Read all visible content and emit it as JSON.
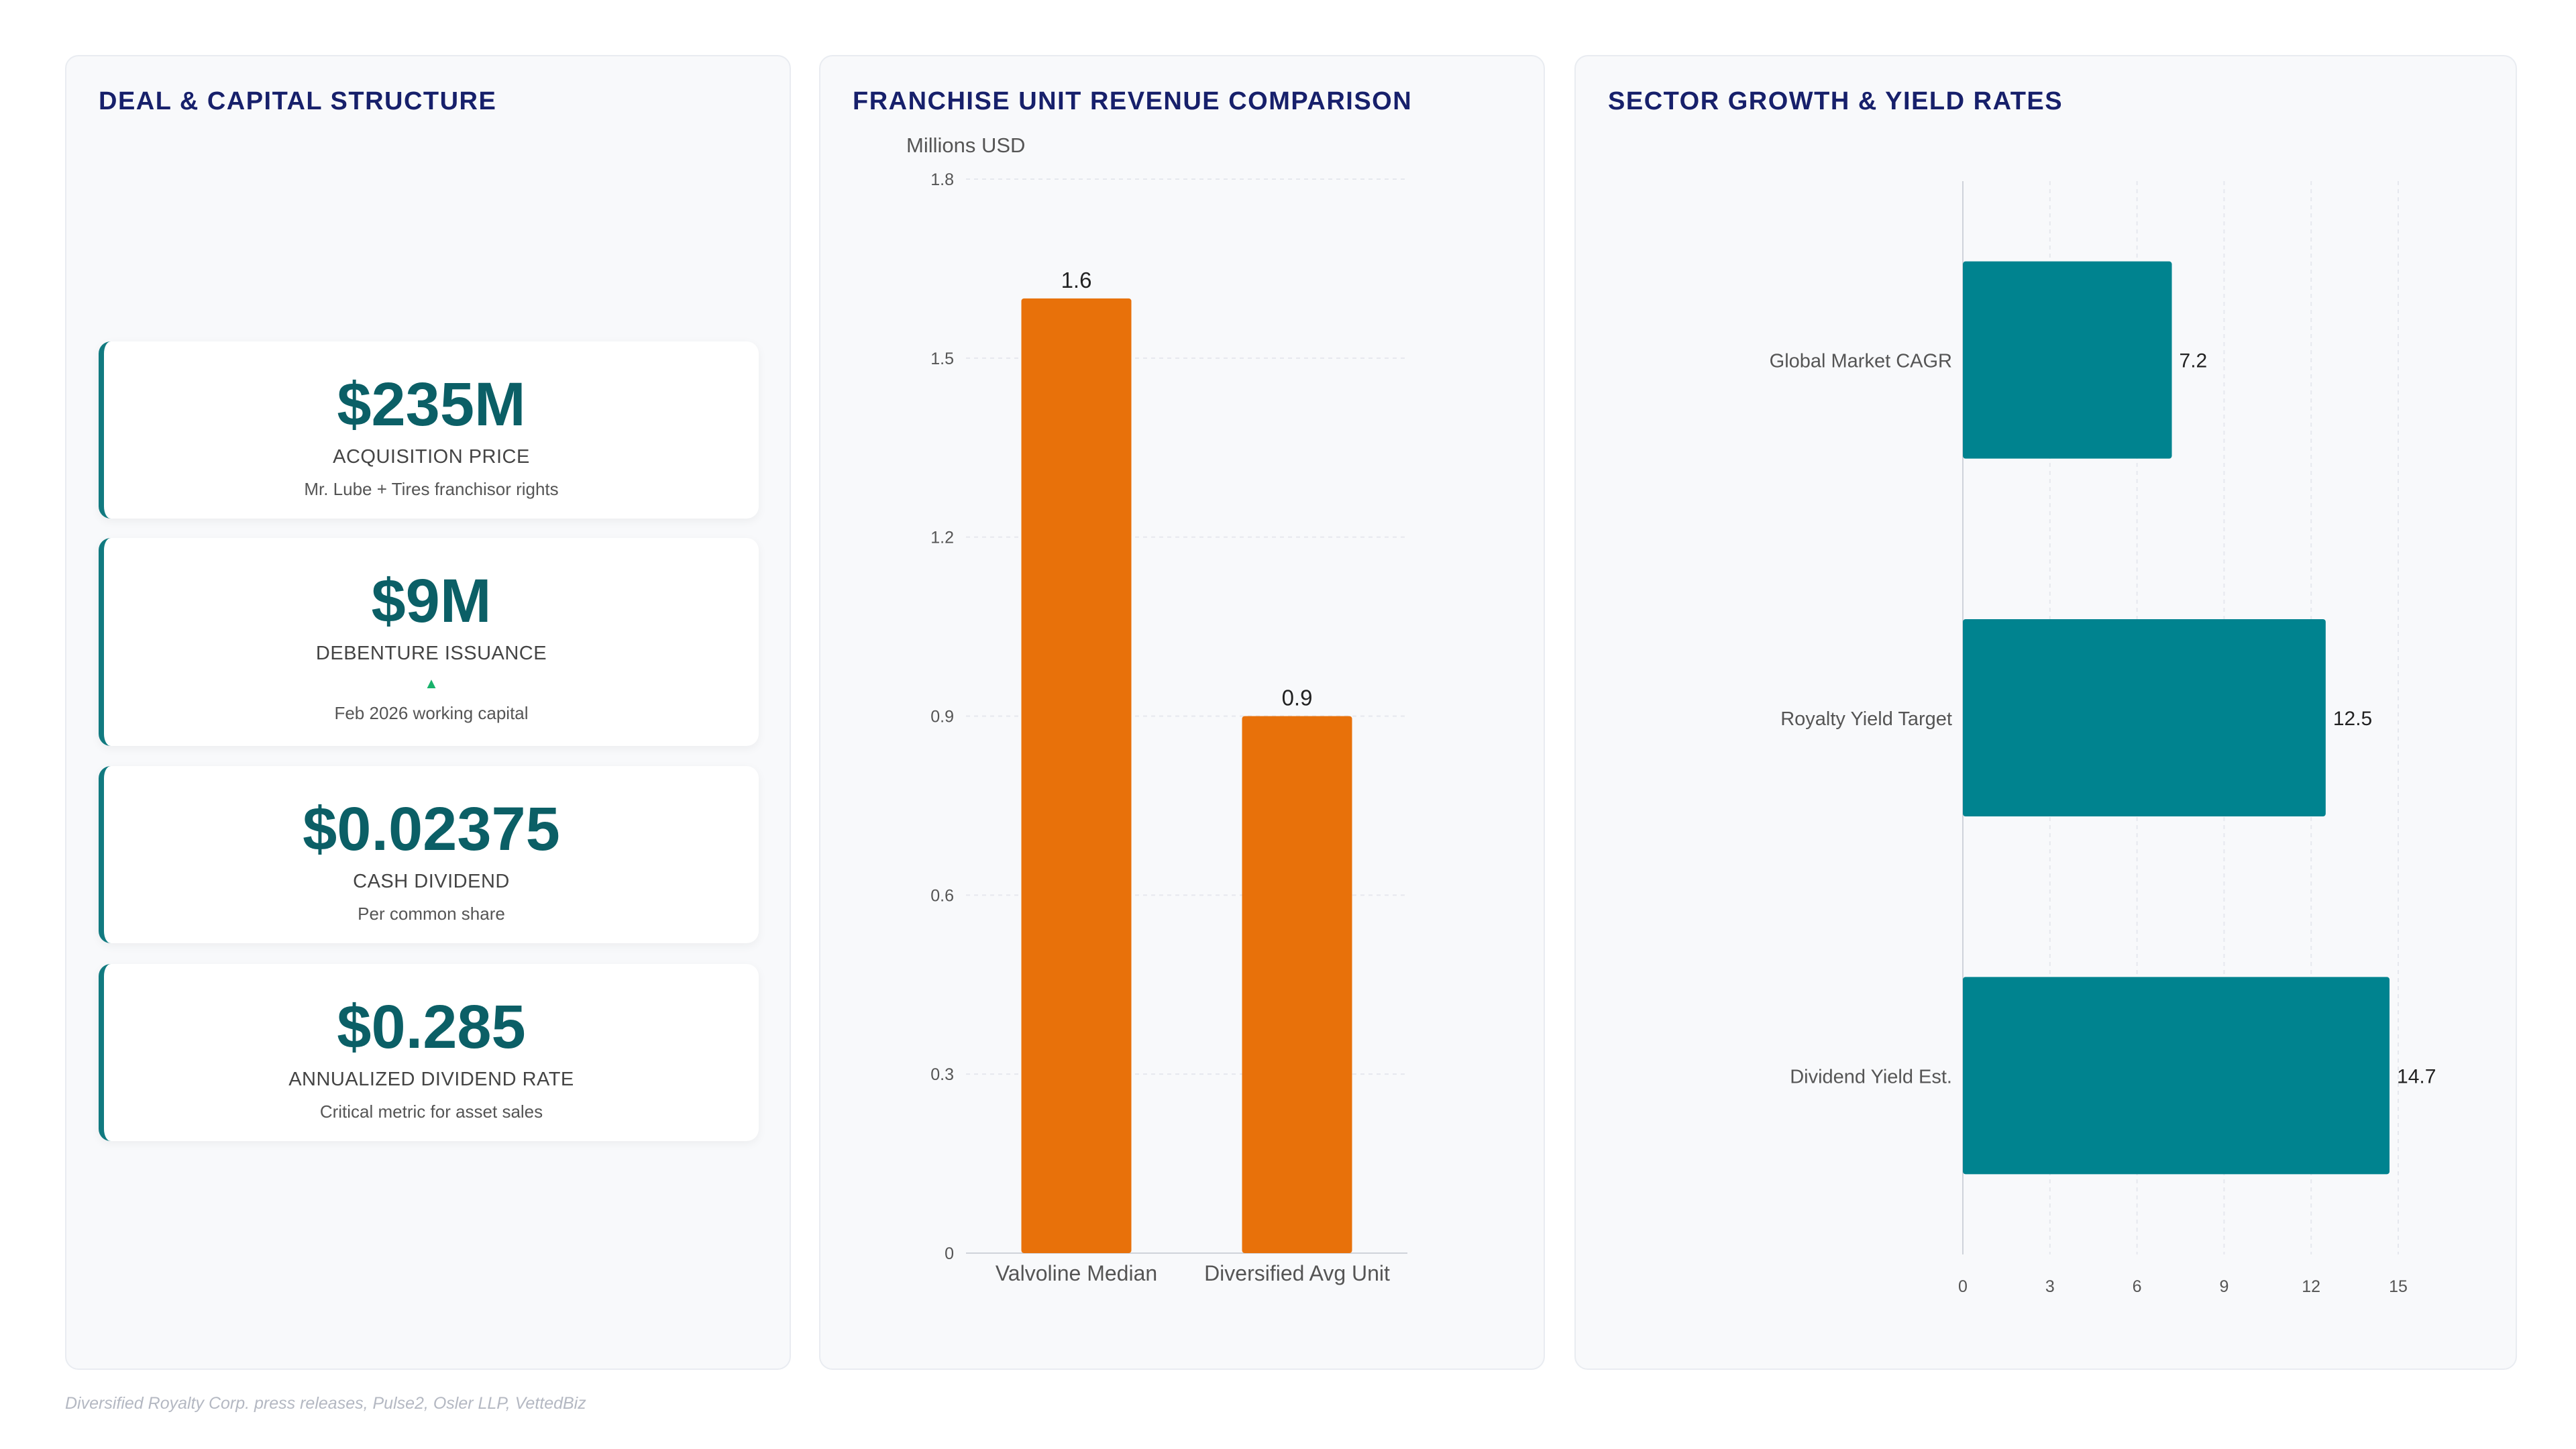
{
  "kpi_panel": {
    "title": "DEAL & CAPITAL STRUCTURE",
    "cards": [
      {
        "value": "$235M",
        "label": "ACQUISITION PRICE",
        "sub": "Mr. Lube + Tires franchisor rights"
      },
      {
        "value": "$9M",
        "label": "DEBENTURE ISSUANCE",
        "trend": "▲",
        "sub": "Feb 2026 working capital"
      },
      {
        "value": "$0.02375",
        "label": "CASH DIVIDEND",
        "sub": "Per common share"
      },
      {
        "value": "$0.285",
        "label": "ANNUALIZED DIVIDEND RATE",
        "sub": "Critical metric for asset sales"
      }
    ]
  },
  "chart_data": [
    {
      "type": "bar",
      "title": "FRANCHISE UNIT REVENUE COMPARISON",
      "ylabel": "Millions USD",
      "categories": [
        "Valvoline Median",
        "Diversified Avg Unit"
      ],
      "values": [
        1.6,
        0.9
      ],
      "value_labels": [
        "1.6",
        "0.9"
      ],
      "ylim": [
        0,
        1.8
      ],
      "yticks": [
        "0",
        "0.3",
        "0.6",
        "0.9",
        "1.2",
        "1.5",
        "1.8"
      ],
      "grid": true,
      "color": "#e8710a"
    },
    {
      "type": "bar",
      "orientation": "horizontal",
      "title": "SECTOR GROWTH & YIELD RATES",
      "categories": [
        "Global Market CAGR",
        "Royalty Yield Target",
        "Dividend Yield Est."
      ],
      "values": [
        7.2,
        12.5,
        14.7
      ],
      "value_labels": [
        "7.2",
        "12.5",
        "14.7"
      ],
      "xlim": [
        0,
        15
      ],
      "xticks": [
        "0",
        "3",
        "6",
        "9",
        "12",
        "15"
      ],
      "grid": true,
      "color": "#00838f"
    }
  ],
  "source": "Diversified Royalty Corp. press releases, Pulse2, Osler LLP, VettedBiz"
}
